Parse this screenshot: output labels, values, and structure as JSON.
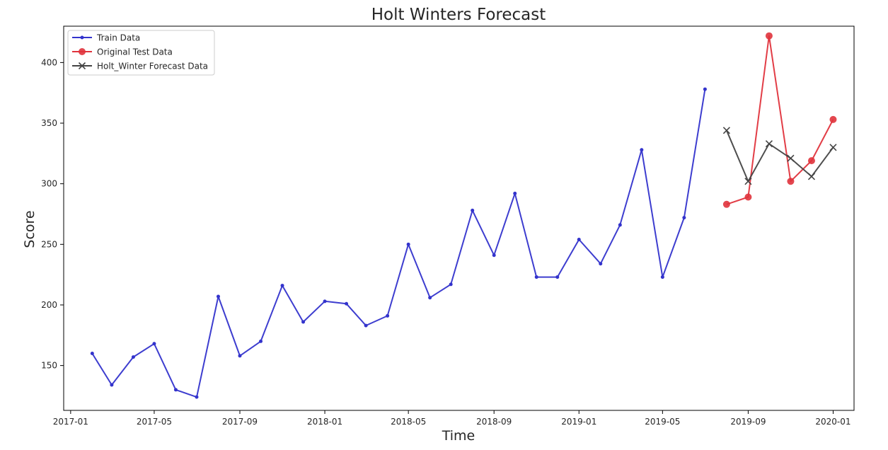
{
  "chart_data": {
    "type": "line",
    "title": "Holt Winters Forecast",
    "xlabel": "Time",
    "ylabel": "Score",
    "xlim": [
      "2016-12-22",
      "2020-01-31"
    ],
    "ylim": [
      113,
      430
    ],
    "x_ticks": [
      "2017-01",
      "2017-05",
      "2017-09",
      "2018-01",
      "2018-05",
      "2018-09",
      "2019-01",
      "2019-05",
      "2019-09",
      "2020-01"
    ],
    "y_ticks": [
      150,
      200,
      250,
      300,
      350,
      400
    ],
    "grid": false,
    "legend_position": "upper left",
    "series": [
      {
        "name": "Train Data",
        "color": "#3333cc",
        "marker": "dot",
        "x": [
          "2017-02-01",
          "2017-03-01",
          "2017-04-01",
          "2017-05-01",
          "2017-06-01",
          "2017-07-01",
          "2017-08-01",
          "2017-09-01",
          "2017-10-01",
          "2017-11-01",
          "2017-12-01",
          "2018-01-01",
          "2018-02-01",
          "2018-03-01",
          "2018-04-01",
          "2018-05-01",
          "2018-06-01",
          "2018-07-01",
          "2018-08-01",
          "2018-09-01",
          "2018-10-01",
          "2018-11-01",
          "2018-12-01",
          "2019-01-01",
          "2019-02-01",
          "2019-03-01",
          "2019-04-01",
          "2019-05-01",
          "2019-06-01",
          "2019-07-01"
        ],
        "values": [
          160,
          134,
          157,
          168,
          130,
          124,
          207,
          158,
          170,
          216,
          186,
          203,
          201,
          183,
          191,
          250,
          206,
          217,
          278,
          241,
          292,
          223,
          223,
          254,
          234,
          266,
          328,
          223,
          272,
          378
        ]
      },
      {
        "name": "Original Test Data",
        "color": "#e0333c",
        "marker": "circle",
        "x": [
          "2019-08-01",
          "2019-09-01",
          "2019-10-01",
          "2019-11-01",
          "2019-12-01",
          "2020-01-01"
        ],
        "values": [
          283,
          289,
          422,
          302,
          319,
          353
        ]
      },
      {
        "name": "Holt_Winter Forecast Data",
        "color": "#444444",
        "marker": "x",
        "x": [
          "2019-08-01",
          "2019-09-01",
          "2019-10-01",
          "2019-11-01",
          "2019-12-01",
          "2020-01-01"
        ],
        "values": [
          344,
          302,
          333,
          321,
          306,
          330
        ]
      }
    ]
  }
}
